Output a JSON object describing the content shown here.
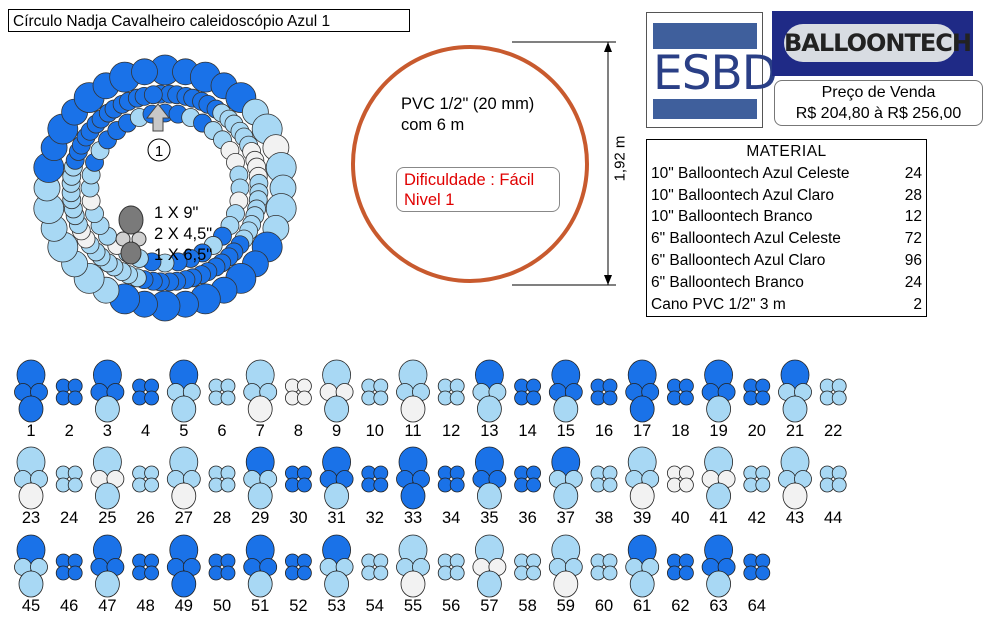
{
  "title": "Círculo Nadja Cavalheiro caleidoscópio  Azul 1",
  "arrow_label": "1",
  "balloon_key": [
    "1 X 9\"",
    "2 X 4,5\"",
    "1 X 6,5\""
  ],
  "pvc": {
    "line1": "PVC 1/2\" (20 mm)",
    "line2": "com 6 m"
  },
  "difficulty": {
    "line1": "Dificuldade : Fácil",
    "line2": "Nivel 1"
  },
  "dimension": "1,92 m",
  "logos": {
    "esbd": "ESBD",
    "balloontech": "BALLOONTECH"
  },
  "price": {
    "label": "Preço de Venda",
    "value": "R$ 204,80 à R$ 256,00"
  },
  "material": {
    "title": "MATERIAL",
    "items": [
      {
        "name": "10\" Balloontech Azul Celeste",
        "qty": "24"
      },
      {
        "name": "10\" Balloontech Azul Claro",
        "qty": "28"
      },
      {
        "name": "10\" Balloontech Branco",
        "qty": "12"
      },
      {
        "name": "6\" Balloontech Azul Celeste",
        "qty": "72"
      },
      {
        "name": "6\" Balloontech Azul Claro",
        "qty": "96"
      },
      {
        "name": "6\" Balloontech Branco",
        "qty": "24"
      },
      {
        "name": "Cano PVC 1/2\" 3 m",
        "qty": "2"
      }
    ]
  },
  "colors": {
    "celeste": "#1a72e8",
    "claro": "#a8d8f4",
    "branco": "#f2f2f2",
    "gray": "#808080",
    "ring": "#d05a2a"
  },
  "modules": [
    {
      "n": "1",
      "t": "A",
      "c": [
        "celeste",
        "celeste",
        "celeste",
        "celeste"
      ]
    },
    {
      "n": "2",
      "t": "B",
      "c": [
        "celeste",
        "celeste",
        "celeste",
        "celeste"
      ]
    },
    {
      "n": "3",
      "t": "A",
      "c": [
        "celeste",
        "celeste",
        "celeste",
        "claro"
      ]
    },
    {
      "n": "4",
      "t": "B",
      "c": [
        "celeste",
        "celeste",
        "celeste",
        "celeste"
      ]
    },
    {
      "n": "5",
      "t": "A",
      "c": [
        "celeste",
        "claro",
        "claro",
        "claro"
      ]
    },
    {
      "n": "6",
      "t": "B",
      "c": [
        "claro",
        "claro",
        "claro",
        "claro"
      ]
    },
    {
      "n": "7",
      "t": "A",
      "c": [
        "claro",
        "claro",
        "claro",
        "branco"
      ]
    },
    {
      "n": "8",
      "t": "B",
      "c": [
        "branco",
        "branco",
        "branco",
        "branco"
      ]
    },
    {
      "n": "9",
      "t": "A",
      "c": [
        "claro",
        "branco",
        "branco",
        "claro"
      ]
    },
    {
      "n": "10",
      "t": "B",
      "c": [
        "claro",
        "claro",
        "claro",
        "claro"
      ]
    },
    {
      "n": "11",
      "t": "A",
      "c": [
        "claro",
        "claro",
        "claro",
        "branco"
      ]
    },
    {
      "n": "12",
      "t": "B",
      "c": [
        "claro",
        "claro",
        "claro",
        "claro"
      ]
    },
    {
      "n": "13",
      "t": "A",
      "c": [
        "celeste",
        "claro",
        "claro",
        "claro"
      ]
    },
    {
      "n": "14",
      "t": "B",
      "c": [
        "celeste",
        "celeste",
        "celeste",
        "celeste"
      ]
    },
    {
      "n": "15",
      "t": "A",
      "c": [
        "celeste",
        "celeste",
        "celeste",
        "claro"
      ]
    },
    {
      "n": "16",
      "t": "B",
      "c": [
        "celeste",
        "celeste",
        "celeste",
        "celeste"
      ]
    },
    {
      "n": "17",
      "t": "A",
      "c": [
        "celeste",
        "celeste",
        "celeste",
        "celeste"
      ]
    },
    {
      "n": "18",
      "t": "B",
      "c": [
        "celeste",
        "celeste",
        "celeste",
        "celeste"
      ]
    },
    {
      "n": "19",
      "t": "A",
      "c": [
        "celeste",
        "celeste",
        "celeste",
        "claro"
      ]
    },
    {
      "n": "20",
      "t": "B",
      "c": [
        "celeste",
        "celeste",
        "celeste",
        "celeste"
      ]
    },
    {
      "n": "21",
      "t": "A",
      "c": [
        "celeste",
        "claro",
        "claro",
        "claro"
      ]
    },
    {
      "n": "22",
      "t": "B",
      "c": [
        "claro",
        "claro",
        "claro",
        "claro"
      ]
    },
    {
      "n": "23",
      "t": "A",
      "c": [
        "claro",
        "claro",
        "claro",
        "branco"
      ]
    },
    {
      "n": "24",
      "t": "B",
      "c": [
        "claro",
        "claro",
        "claro",
        "claro"
      ]
    },
    {
      "n": "25",
      "t": "A",
      "c": [
        "claro",
        "branco",
        "branco",
        "claro"
      ]
    },
    {
      "n": "26",
      "t": "B",
      "c": [
        "claro",
        "claro",
        "claro",
        "claro"
      ]
    },
    {
      "n": "27",
      "t": "A",
      "c": [
        "claro",
        "claro",
        "claro",
        "branco"
      ]
    },
    {
      "n": "28",
      "t": "B",
      "c": [
        "claro",
        "claro",
        "claro",
        "claro"
      ]
    },
    {
      "n": "29",
      "t": "A",
      "c": [
        "celeste",
        "claro",
        "claro",
        "claro"
      ]
    },
    {
      "n": "30",
      "t": "B",
      "c": [
        "celeste",
        "celeste",
        "celeste",
        "celeste"
      ]
    },
    {
      "n": "31",
      "t": "A",
      "c": [
        "celeste",
        "celeste",
        "celeste",
        "claro"
      ]
    },
    {
      "n": "32",
      "t": "B",
      "c": [
        "celeste",
        "celeste",
        "celeste",
        "celeste"
      ]
    },
    {
      "n": "33",
      "t": "A",
      "c": [
        "celeste",
        "celeste",
        "celeste",
        "celeste"
      ]
    },
    {
      "n": "34",
      "t": "B",
      "c": [
        "celeste",
        "celeste",
        "celeste",
        "celeste"
      ]
    },
    {
      "n": "35",
      "t": "A",
      "c": [
        "celeste",
        "celeste",
        "celeste",
        "claro"
      ]
    },
    {
      "n": "36",
      "t": "B",
      "c": [
        "celeste",
        "celeste",
        "celeste",
        "celeste"
      ]
    },
    {
      "n": "37",
      "t": "A",
      "c": [
        "celeste",
        "claro",
        "claro",
        "claro"
      ]
    },
    {
      "n": "38",
      "t": "B",
      "c": [
        "claro",
        "claro",
        "claro",
        "claro"
      ]
    },
    {
      "n": "39",
      "t": "A",
      "c": [
        "claro",
        "claro",
        "claro",
        "branco"
      ]
    },
    {
      "n": "40",
      "t": "B",
      "c": [
        "branco",
        "branco",
        "branco",
        "branco"
      ]
    },
    {
      "n": "41",
      "t": "A",
      "c": [
        "claro",
        "branco",
        "branco",
        "claro"
      ]
    },
    {
      "n": "42",
      "t": "B",
      "c": [
        "claro",
        "claro",
        "claro",
        "claro"
      ]
    },
    {
      "n": "43",
      "t": "A",
      "c": [
        "claro",
        "claro",
        "claro",
        "branco"
      ]
    },
    {
      "n": "44",
      "t": "B",
      "c": [
        "claro",
        "claro",
        "claro",
        "claro"
      ]
    },
    {
      "n": "45",
      "t": "A",
      "c": [
        "celeste",
        "claro",
        "claro",
        "claro"
      ]
    },
    {
      "n": "46",
      "t": "B",
      "c": [
        "celeste",
        "celeste",
        "celeste",
        "celeste"
      ]
    },
    {
      "n": "47",
      "t": "A",
      "c": [
        "celeste",
        "celeste",
        "celeste",
        "claro"
      ]
    },
    {
      "n": "48",
      "t": "B",
      "c": [
        "celeste",
        "celeste",
        "celeste",
        "celeste"
      ]
    },
    {
      "n": "49",
      "t": "A",
      "c": [
        "celeste",
        "celeste",
        "celeste",
        "celeste"
      ]
    },
    {
      "n": "50",
      "t": "B",
      "c": [
        "celeste",
        "celeste",
        "celeste",
        "celeste"
      ]
    },
    {
      "n": "51",
      "t": "A",
      "c": [
        "celeste",
        "celeste",
        "celeste",
        "claro"
      ]
    },
    {
      "n": "52",
      "t": "B",
      "c": [
        "celeste",
        "celeste",
        "celeste",
        "celeste"
      ]
    },
    {
      "n": "53",
      "t": "A",
      "c": [
        "celeste",
        "claro",
        "claro",
        "claro"
      ]
    },
    {
      "n": "54",
      "t": "B",
      "c": [
        "claro",
        "claro",
        "claro",
        "claro"
      ]
    },
    {
      "n": "55",
      "t": "A",
      "c": [
        "claro",
        "claro",
        "claro",
        "branco"
      ]
    },
    {
      "n": "56",
      "t": "B",
      "c": [
        "claro",
        "claro",
        "claro",
        "claro"
      ]
    },
    {
      "n": "57",
      "t": "A",
      "c": [
        "claro",
        "branco",
        "branco",
        "claro"
      ]
    },
    {
      "n": "58",
      "t": "B",
      "c": [
        "claro",
        "claro",
        "claro",
        "claro"
      ]
    },
    {
      "n": "59",
      "t": "A",
      "c": [
        "claro",
        "claro",
        "claro",
        "branco"
      ]
    },
    {
      "n": "60",
      "t": "B",
      "c": [
        "claro",
        "claro",
        "claro",
        "claro"
      ]
    },
    {
      "n": "61",
      "t": "A",
      "c": [
        "celeste",
        "claro",
        "claro",
        "claro"
      ]
    },
    {
      "n": "62",
      "t": "B",
      "c": [
        "celeste",
        "celeste",
        "celeste",
        "celeste"
      ]
    },
    {
      "n": "63",
      "t": "A",
      "c": [
        "celeste",
        "celeste",
        "celeste",
        "claro"
      ]
    },
    {
      "n": "64",
      "t": "B",
      "c": [
        "celeste",
        "celeste",
        "celeste",
        "celeste"
      ]
    }
  ]
}
